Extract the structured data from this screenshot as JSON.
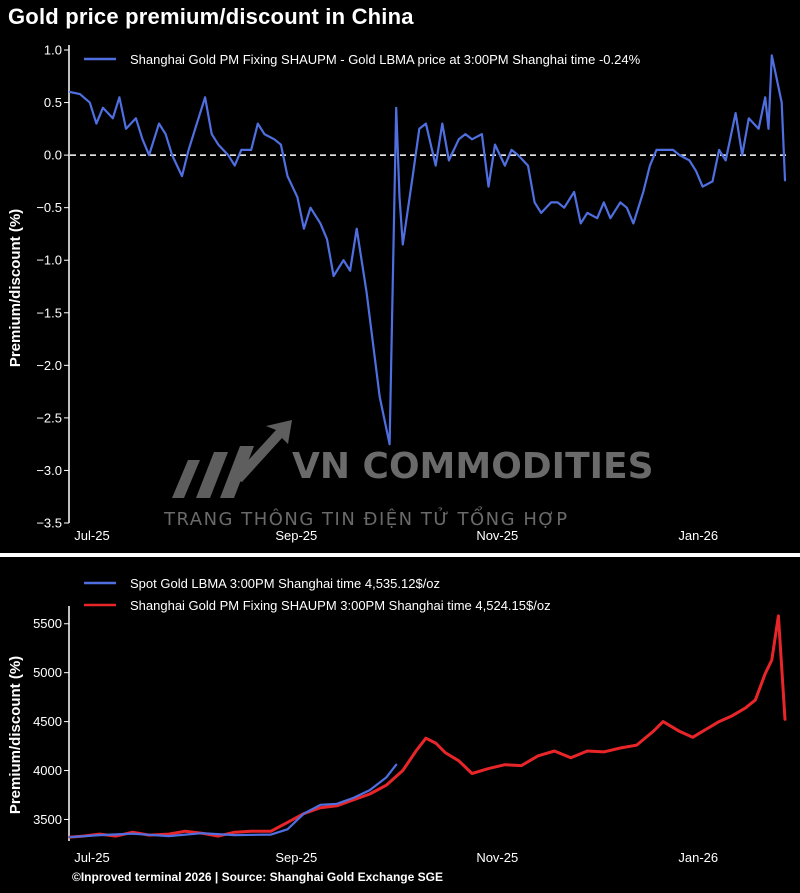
{
  "title": "Gold price premium/discount in China",
  "footer": "©Inproved terminal 2026 | Source: Shanghai Gold Exchange SGE",
  "watermark": {
    "title": "VN COMMODITIES",
    "subtitle": "TRANG THÔNG TIN ĐIỆN TỬ TỔNG HỢP"
  },
  "colors": {
    "blue": "#4f6fe0",
    "red": "#e8262a",
    "zero_line": "#ffffff",
    "background": "#000000"
  },
  "chart_data": [
    {
      "type": "line",
      "ylabel": "Premium/discount (%)",
      "ylim": [
        -3.5,
        1.0
      ],
      "yticks": [
        "1.0",
        "0.5",
        "0.0",
        "−0.5",
        "−1.0",
        "−1.5",
        "−2.0",
        "−2.5",
        "−3.0",
        "−3.5"
      ],
      "yticks_values": [
        1.0,
        0.5,
        0.0,
        -0.5,
        -1.0,
        -1.5,
        -2.0,
        -2.5,
        -3.0,
        -3.5
      ],
      "xticks": [
        "Jul-25",
        "Sep-25",
        "Nov-25",
        "Jan-26"
      ],
      "x_range": [
        "2025-07-01",
        "2026-02-03"
      ],
      "xtick_dates": [
        "2025-07-01",
        "2025-09-01",
        "2025-11-01",
        "2026-01-01"
      ],
      "reference_line": 0,
      "legend": "top-left",
      "grid": false,
      "series": [
        {
          "name": "Shanghai Gold PM Fixing SHAUPM - Gold LBMA price at 3:00PM Shanghai time -0.24%",
          "color": "#4f6fe0",
          "x": [
            "2025-07-01",
            "2025-07-04",
            "2025-07-07",
            "2025-07-09",
            "2025-07-11",
            "2025-07-14",
            "2025-07-16",
            "2025-07-18",
            "2025-07-21",
            "2025-07-23",
            "2025-07-25",
            "2025-07-28",
            "2025-07-30",
            "2025-08-01",
            "2025-08-04",
            "2025-08-06",
            "2025-08-08",
            "2025-08-11",
            "2025-08-13",
            "2025-08-15",
            "2025-08-18",
            "2025-08-20",
            "2025-08-22",
            "2025-08-25",
            "2025-08-27",
            "2025-08-29",
            "2025-09-01",
            "2025-09-03",
            "2025-09-05",
            "2025-09-08",
            "2025-09-10",
            "2025-09-12",
            "2025-09-15",
            "2025-09-17",
            "2025-09-19",
            "2025-09-22",
            "2025-09-24",
            "2025-09-26",
            "2025-09-29",
            "2025-10-01",
            "2025-10-03",
            "2025-10-06",
            "2025-10-08",
            "2025-10-09",
            "2025-10-10",
            "2025-10-13",
            "2025-10-15",
            "2025-10-17",
            "2025-10-20",
            "2025-10-22",
            "2025-10-24",
            "2025-10-27",
            "2025-10-29",
            "2025-10-31",
            "2025-11-03",
            "2025-11-05",
            "2025-11-07",
            "2025-11-10",
            "2025-11-12",
            "2025-11-14",
            "2025-11-17",
            "2025-11-19",
            "2025-11-21",
            "2025-11-24",
            "2025-11-26",
            "2025-11-28",
            "2025-12-01",
            "2025-12-03",
            "2025-12-05",
            "2025-12-08",
            "2025-12-10",
            "2025-12-12",
            "2025-12-15",
            "2025-12-17",
            "2025-12-19",
            "2025-12-22",
            "2025-12-24",
            "2025-12-26",
            "2025-12-29",
            "2025-12-31",
            "2026-01-02",
            "2026-01-05",
            "2026-01-07",
            "2026-01-09",
            "2026-01-12",
            "2026-01-14",
            "2026-01-16",
            "2026-01-19",
            "2026-01-21",
            "2026-01-23",
            "2026-01-26",
            "2026-01-28",
            "2026-01-29",
            "2026-01-30",
            "2026-02-02",
            "2026-02-03"
          ],
          "values": [
            0.6,
            0.58,
            0.5,
            0.3,
            0.45,
            0.35,
            0.55,
            0.25,
            0.35,
            0.15,
            0.0,
            0.3,
            0.2,
            0.0,
            -0.2,
            0.05,
            0.25,
            0.55,
            0.2,
            0.1,
            0.0,
            -0.1,
            0.05,
            0.05,
            0.3,
            0.2,
            0.15,
            0.1,
            -0.2,
            -0.4,
            -0.7,
            -0.5,
            -0.65,
            -0.8,
            -1.15,
            -1.0,
            -1.1,
            -0.7,
            -1.3,
            -1.8,
            -2.3,
            -2.75,
            0.45,
            -0.4,
            -0.85,
            -0.2,
            0.25,
            0.3,
            -0.1,
            0.3,
            -0.05,
            0.15,
            0.2,
            0.15,
            0.2,
            -0.3,
            0.1,
            -0.1,
            0.05,
            0.0,
            -0.1,
            -0.45,
            -0.55,
            -0.45,
            -0.45,
            -0.5,
            -0.35,
            -0.65,
            -0.55,
            -0.6,
            -0.45,
            -0.6,
            -0.45,
            -0.5,
            -0.65,
            -0.35,
            -0.1,
            0.05,
            0.05,
            0.05,
            0.0,
            -0.05,
            -0.15,
            -0.3,
            -0.25,
            0.05,
            -0.05,
            0.4,
            0.0,
            0.35,
            0.25,
            0.55,
            0.25,
            0.95,
            0.5,
            -0.24
          ]
        }
      ]
    },
    {
      "type": "line",
      "ylabel": "Premium/discount (%)",
      "ylim": [
        3280,
        5620
      ],
      "yticks": [
        "5500",
        "5000",
        "4500",
        "4000",
        "3500"
      ],
      "yticks_values": [
        5500,
        5000,
        4500,
        4000,
        3500
      ],
      "xticks": [
        "Jul-25",
        "Sep-25",
        "Nov-25",
        "Jan-26"
      ],
      "x_range": [
        "2025-07-01",
        "2026-02-03"
      ],
      "xtick_dates": [
        "2025-07-01",
        "2025-09-01",
        "2025-11-01",
        "2026-01-01"
      ],
      "legend": "top-left",
      "grid": false,
      "series": [
        {
          "name": "Spot Gold LBMA 3:00PM Shanghai time 4,535.12$/oz",
          "color": "#4f6fe0",
          "x": [
            "2025-07-01",
            "2025-07-10",
            "2025-07-20",
            "2025-07-31",
            "2025-08-10",
            "2025-08-20",
            "2025-08-31",
            "2025-09-05",
            "2025-09-10",
            "2025-09-15",
            "2025-09-20",
            "2025-09-25",
            "2025-09-30",
            "2025-10-05",
            "2025-10-08"
          ],
          "values": [
            3320,
            3340,
            3355,
            3330,
            3360,
            3340,
            3345,
            3400,
            3560,
            3650,
            3660,
            3720,
            3800,
            3930,
            4060
          ]
        },
        {
          "name": "Shanghai Gold PM Fixing SHAUPM 3:00PM Shanghai time 4,524.15$/oz",
          "color": "#e8262a",
          "x": [
            "2025-07-01",
            "2025-07-05",
            "2025-07-10",
            "2025-07-15",
            "2025-07-20",
            "2025-07-25",
            "2025-07-31",
            "2025-08-05",
            "2025-08-10",
            "2025-08-15",
            "2025-08-20",
            "2025-08-25",
            "2025-08-31",
            "2025-09-05",
            "2025-09-10",
            "2025-09-15",
            "2025-09-20",
            "2025-09-25",
            "2025-09-30",
            "2025-10-05",
            "2025-10-10",
            "2025-10-14",
            "2025-10-17",
            "2025-10-20",
            "2025-10-23",
            "2025-10-27",
            "2025-10-31",
            "2025-11-05",
            "2025-11-10",
            "2025-11-15",
            "2025-11-20",
            "2025-11-25",
            "2025-11-30",
            "2025-12-05",
            "2025-12-10",
            "2025-12-15",
            "2025-12-20",
            "2025-12-25",
            "2025-12-28",
            "2026-01-02",
            "2026-01-06",
            "2026-01-10",
            "2026-01-14",
            "2026-01-18",
            "2026-01-22",
            "2026-01-25",
            "2026-01-28",
            "2026-01-30",
            "2026-02-01",
            "2026-02-03"
          ],
          "values": [
            3320,
            3330,
            3350,
            3330,
            3370,
            3340,
            3350,
            3380,
            3360,
            3330,
            3370,
            3380,
            3380,
            3470,
            3560,
            3620,
            3640,
            3700,
            3760,
            3850,
            4000,
            4200,
            4330,
            4280,
            4180,
            4100,
            3970,
            4020,
            4060,
            4050,
            4150,
            4200,
            4130,
            4200,
            4190,
            4230,
            4260,
            4400,
            4500,
            4400,
            4340,
            4420,
            4500,
            4560,
            4640,
            4720,
            4990,
            5130,
            5580,
            4524
          ]
        }
      ]
    }
  ]
}
